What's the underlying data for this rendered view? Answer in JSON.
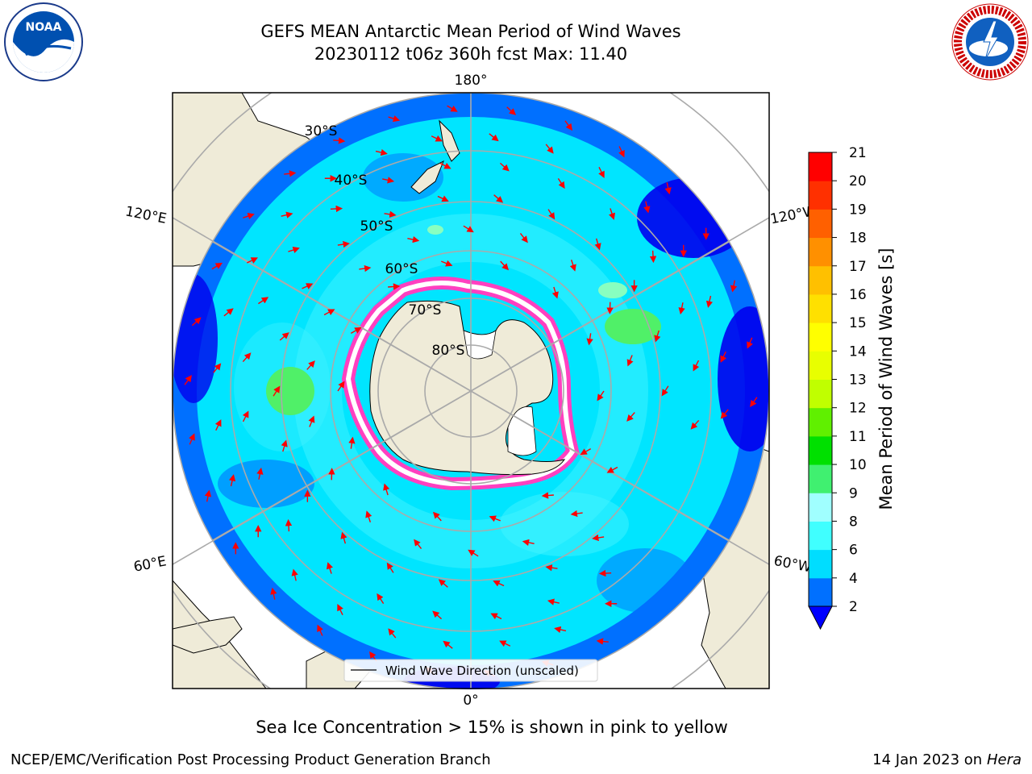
{
  "header": {
    "title_line1": "GEFS MEAN Antarctic Mean Period of Wind Waves",
    "title_line2": "20230112 t06z 360h fcst   Max: 11.40"
  },
  "logos": {
    "left": {
      "icon": "noaa-logo",
      "text": "NOAA"
    },
    "right": {
      "icon": "nws-logo",
      "text": "NATIONAL WEATHER SERVICE"
    }
  },
  "map": {
    "projection": "south-polar-stereographic",
    "longitude_labels": {
      "top": "180°",
      "bottom": "0°",
      "upper_left": "120°E",
      "upper_right": "120°W",
      "lower_left": "60°E",
      "lower_right": "60°W"
    },
    "latitude_labels": [
      "30°S",
      "40°S",
      "50°S",
      "60°S",
      "70°S",
      "80°S"
    ],
    "legend_label": "Wind Wave Direction (unscaled)",
    "arrow_color": "#ff0000",
    "land_color": "#efebd8",
    "ocean_colors": {
      "shallow_period": "#0000ff",
      "low": "#006cff",
      "mid": "#00e5ff",
      "high": "#44f3ff",
      "green": "#50f068"
    }
  },
  "colorbar": {
    "label": "Mean Period of Wind Waves [s]",
    "ticks": [
      "2",
      "4",
      "6",
      "8",
      "9",
      "10",
      "11",
      "12",
      "13",
      "14",
      "15",
      "16",
      "17",
      "18",
      "19",
      "20",
      "21"
    ],
    "colors": [
      "#0070ff",
      "#00ddff",
      "#40ffff",
      "#a0ffff",
      "#40f070",
      "#00e000",
      "#60f000",
      "#c0ff00",
      "#e8ff00",
      "#ffff00",
      "#ffe000",
      "#ffc000",
      "#ff9000",
      "#ff6000",
      "#ff3000",
      "#ff0000"
    ]
  },
  "caption": "Sea Ice Concentration > 15% is shown in pink to yellow",
  "footer": {
    "left": "NCEP/EMC/Verification Post Processing Product Generation Branch",
    "right_prefix": "14 Jan 2023 on ",
    "right_machine": "Hera"
  }
}
